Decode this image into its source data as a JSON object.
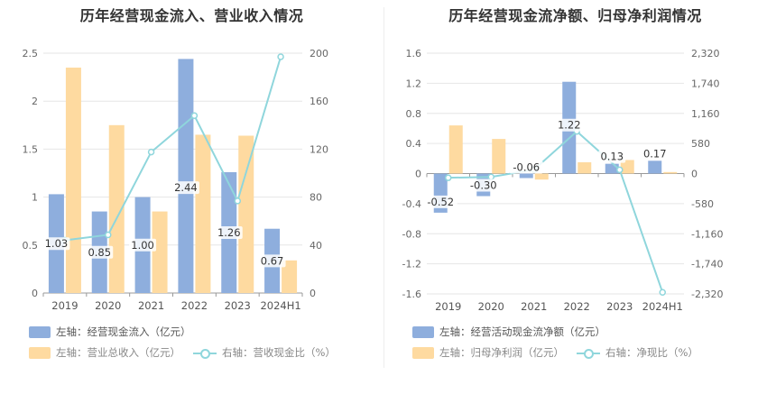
{
  "chart_data": [
    {
      "type": "bar",
      "title": "历年经营现金流入、营业收入情况",
      "categories": [
        "2019",
        "2020",
        "2021",
        "2022",
        "2023",
        "2024H1"
      ],
      "series": [
        {
          "name": "左轴：经营现金流入（亿元）",
          "axis": "left",
          "type": "bar",
          "color": "#8eaedd",
          "values": [
            1.03,
            0.85,
            1.0,
            2.44,
            1.26,
            0.67
          ],
          "labels": [
            "1.03",
            "0.85",
            "1.00",
            "2.44",
            "1.26",
            "0.67"
          ]
        },
        {
          "name": "左轴：营业总收入（亿元）",
          "axis": "left",
          "type": "bar",
          "color": "#fedaa0",
          "values": [
            2.35,
            1.75,
            0.85,
            1.65,
            1.64,
            0.34
          ]
        },
        {
          "name": "右轴：营收现金比（%）",
          "axis": "right",
          "type": "line",
          "color": "#8fd6dc",
          "values": [
            44,
            48.5,
            117.6,
            147.9,
            76.8,
            197
          ]
        }
      ],
      "left_axis": {
        "min": 0,
        "max": 2.5,
        "ticks": [
          "0",
          "0.5",
          "1",
          "1.5",
          "2",
          "2.5"
        ],
        "tick_values": [
          0,
          0.5,
          1,
          1.5,
          2,
          2.5
        ]
      },
      "right_axis": {
        "min": 0,
        "max": 200,
        "ticks": [
          "0",
          "40",
          "80",
          "120",
          "160",
          "200"
        ],
        "tick_values": [
          0,
          40,
          80,
          120,
          160,
          200
        ]
      },
      "legend": {
        "row1": [
          "左轴：经营现金流入（亿元）"
        ],
        "row2": [
          "左轴：营业总收入（亿元）",
          "右轴：营收现金比（%）"
        ]
      }
    },
    {
      "type": "bar",
      "title": "历年经营现金流净额、归母净利润情况",
      "categories": [
        "2019",
        "2020",
        "2021",
        "2022",
        "2023",
        "2024H1"
      ],
      "series": [
        {
          "name": "左轴：经营活动现金流净额（亿元）",
          "axis": "left",
          "type": "bar",
          "color": "#8eaedd",
          "values": [
            -0.52,
            -0.3,
            -0.06,
            1.22,
            0.13,
            0.17
          ],
          "labels": [
            "-0.52",
            "-0.30",
            "-0.06",
            "1.22",
            "0.13",
            "0.17"
          ]
        },
        {
          "name": "左轴：归母净利润（亿元）",
          "axis": "left",
          "type": "bar",
          "color": "#fedaa0",
          "values": [
            0.64,
            0.46,
            -0.08,
            0.15,
            0.18,
            0.02
          ]
        },
        {
          "name": "右轴：净现比（%）",
          "axis": "right",
          "type": "line",
          "color": "#8fd6dc",
          "values": [
            -81,
            -65,
            75,
            813,
            72,
            -2290
          ]
        }
      ],
      "left_axis": {
        "min": -1.6,
        "max": 1.6,
        "ticks": [
          "-1.6",
          "-1.2",
          "-0.8",
          "-0.4",
          "0",
          "0.4",
          "0.8",
          "1.2",
          "1.6"
        ],
        "tick_values": [
          -1.6,
          -1.2,
          -0.8,
          -0.4,
          0,
          0.4,
          0.8,
          1.2,
          1.6
        ]
      },
      "right_axis": {
        "min": -2320,
        "max": 2320,
        "ticks": [
          "-2,320",
          "-1,740",
          "-1,160",
          "-580",
          "0",
          "580",
          "1,160",
          "1,740",
          "2,320"
        ],
        "tick_values": [
          -2320,
          -1740,
          -1160,
          -580,
          0,
          580,
          1160,
          1740,
          2320
        ]
      },
      "legend": {
        "row1": [
          "左轴：经营活动现金流净额（亿元）"
        ],
        "row2": [
          "左轴：归母净利润（亿元）",
          "右轴：净现比（%）"
        ]
      }
    }
  ]
}
